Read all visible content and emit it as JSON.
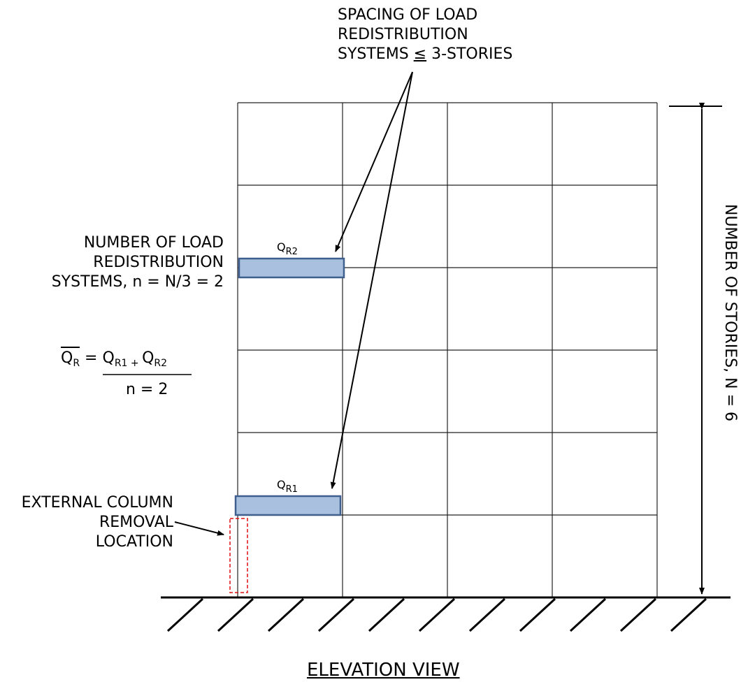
{
  "labels": {
    "spacing": [
      "SPACING OF LOAD",
      "REDISTRIBUTION",
      "SYSTEMS "
    ],
    "spacing_leq": "≤",
    "spacing_tail": " 3-STORIES",
    "number_load": [
      "NUMBER OF LOAD",
      "REDISTRIBUTION",
      "SYSTEMS,  n = N/3 = 2"
    ],
    "external": [
      "EXTERNAL COLUMN",
      "REMOVAL",
      "LOCATION"
    ],
    "stories": "NUMBER OF STORIES, N = 6",
    "caption": "ELEVATION VIEW",
    "qr2": {
      "main": "Q",
      "sub": "R2"
    },
    "qr1": {
      "main": "Q",
      "sub": "R1"
    }
  },
  "formula": {
    "lhs_main": "Q",
    "lhs_sub": "R",
    "equals": " = ",
    "t1_main": "Q",
    "t1_sub": "R1 + ",
    "t2_main": "Q",
    "t2_sub": "R2",
    "denominator": "n = 2"
  },
  "colors": {
    "line": "#000000",
    "redistribution_fill": "#a9c0de",
    "redistribution_stroke": "#3f5f8f",
    "removed_column": "#e01010"
  },
  "frame": {
    "stories": 6,
    "bays": 4
  }
}
